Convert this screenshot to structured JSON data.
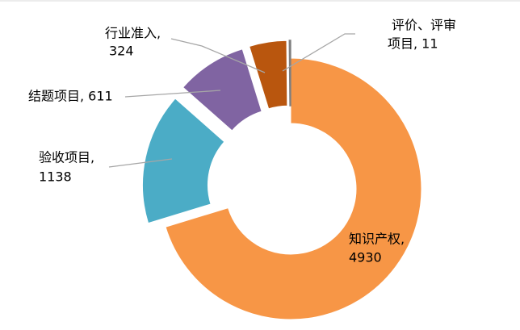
{
  "chart_data": {
    "type": "donut",
    "values": [
      4930,
      1138,
      611,
      324,
      11
    ],
    "data_labels": [
      [
        "知识产权,",
        "4930"
      ],
      [
        "验收项目,",
        "1138"
      ],
      [
        "结题项目, 611"
      ],
      [
        "行业准入,",
        "324"
      ],
      [
        "评价、评审",
        "项目, 11"
      ]
    ],
    "colors": [
      "#f79646",
      "#4bacc6",
      "#8064a2",
      "#b9560e",
      "#7f7f7f"
    ]
  }
}
